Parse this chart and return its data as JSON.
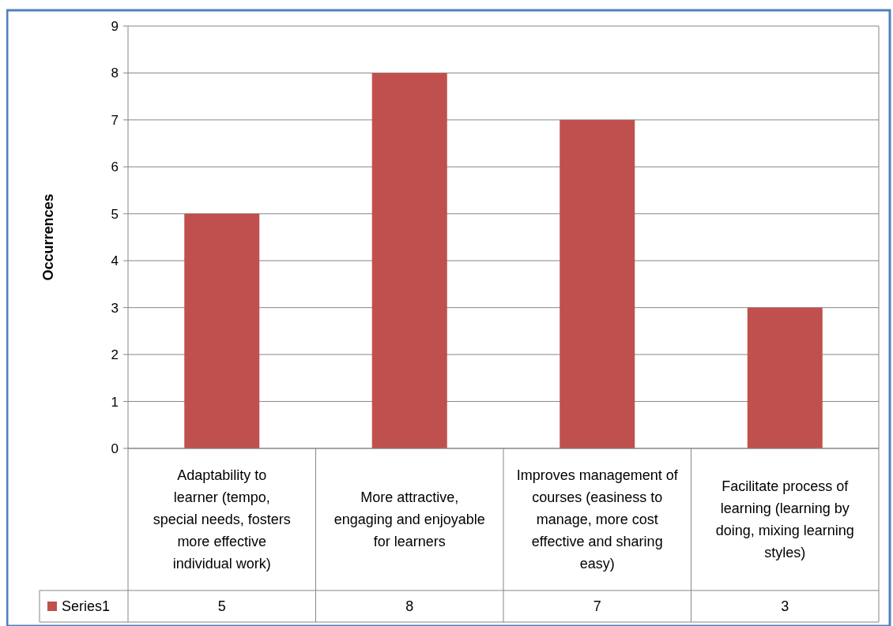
{
  "chart_data": {
    "type": "bar",
    "ylabel": "Occurrences",
    "categories": [
      "Adaptability to learner (tempo, special needs, fosters more effective individual work)",
      "More attractive, engaging and enjoyable for learners",
      "Improves management of courses (easiness to manage, more cost effective and sharing easy)",
      "Facilitate process of learning (learning by doing, mixing learning styles)"
    ],
    "series": [
      {
        "name": "Series1",
        "color": "#c0504d",
        "values": [
          5,
          8,
          7,
          3
        ]
      }
    ],
    "ylim": [
      0,
      9
    ],
    "yticks": [
      0,
      1,
      2,
      3,
      4,
      5,
      6,
      7,
      8,
      9
    ],
    "grid": "y",
    "data_labels": true,
    "legend": "bottom left"
  }
}
